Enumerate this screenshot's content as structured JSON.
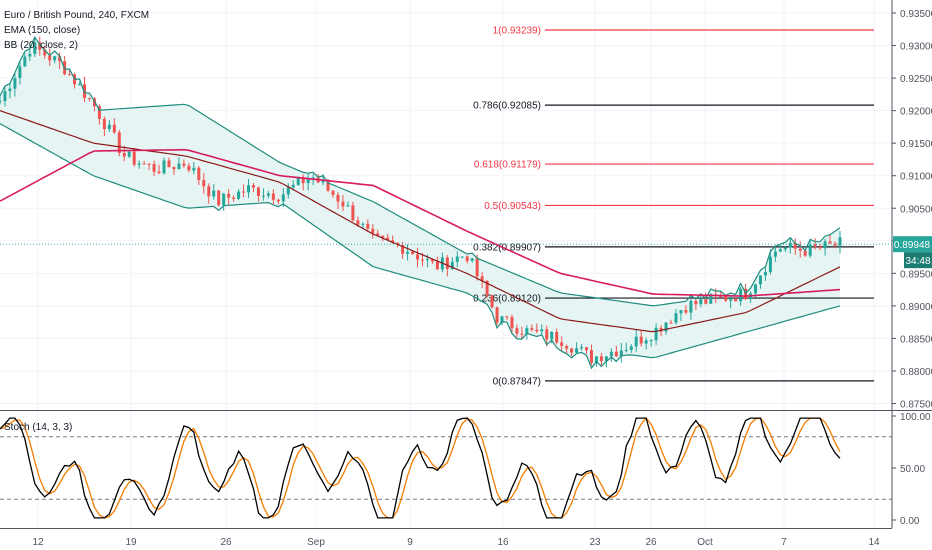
{
  "legend": {
    "symbol": "Euro / British Pound, 240, FXCM",
    "ema": "EMA (150, close)",
    "bb": "BB (20, close, 2)",
    "stoch": "Stoch (14, 3, 3)"
  },
  "price_axis": [
    "0.93500",
    "0.93000",
    "0.92500",
    "0.92000",
    "0.91500",
    "0.91000",
    "0.90500",
    "0.90000",
    "0.89500",
    "0.89000",
    "0.88500",
    "0.88000",
    "0.87500"
  ],
  "stoch_axis": [
    "100.00",
    "50.00",
    "0.00"
  ],
  "time_axis": [
    "12",
    "19",
    "26",
    "Sep",
    "9",
    "16",
    "23",
    "26",
    "Oct",
    "7",
    "14"
  ],
  "current_price": "0.89948",
  "countdown": "34:48",
  "fib_levels": [
    {
      "label": "1(0.93239)",
      "value": 0.93239,
      "color": "#f23645"
    },
    {
      "label": "0.786(0.92085)",
      "value": 0.92085,
      "color": "#131722"
    },
    {
      "label": "0.618(0.91179)",
      "value": 0.91179,
      "color": "#f23645"
    },
    {
      "label": "0.5(0.90543)",
      "value": 0.90543,
      "color": "#f23645"
    },
    {
      "label": "0.382(0.89907)",
      "value": 0.89907,
      "color": "#131722"
    },
    {
      "label": "0.236(0.89120)",
      "value": 0.8912,
      "color": "#131722"
    },
    {
      "label": "0(0.87847)",
      "value": 0.87847,
      "color": "#131722"
    }
  ],
  "colors": {
    "up": "#26a69a",
    "down": "#ef5350",
    "ema150": "#d81b60",
    "bb_basis": "#8b1a1a",
    "bb_band": "#1e8c7e",
    "bb_fill": "#e6f5f3",
    "stoch_k": "#000000",
    "stoch_d": "#f57c00",
    "price_tag": "#26a69a",
    "countdown_tag": "#1b7d72"
  },
  "chart_data": {
    "type": "line",
    "x_unit": "date (4h bars)",
    "x_ticks": [
      "12",
      "19",
      "26",
      "Sep",
      "9",
      "16",
      "23",
      "26",
      "Oct",
      "7",
      "14"
    ],
    "price_range": [
      0.874,
      0.937
    ],
    "series": [
      {
        "kind": "candlestick_close",
        "x": [
          "Aug 9",
          "Aug 12",
          "Aug 14",
          "Aug 16",
          "Aug 19",
          "Aug 21",
          "Aug 23",
          "Aug 26",
          "Aug 28",
          "Aug 30",
          "Sep 2",
          "Sep 3",
          "Sep 5",
          "Sep 9",
          "Sep 11",
          "Sep 13",
          "Sep 16",
          "Sep 18",
          "Sep 20",
          "Sep 23",
          "Sep 25",
          "Sep 27",
          "Sep 30",
          "Oct 2",
          "Oct 4",
          "Oct 7",
          "Oct 8",
          "Oct 10"
        ],
        "y": [
          0.9215,
          0.93,
          0.927,
          0.921,
          0.913,
          0.911,
          0.912,
          0.906,
          0.908,
          0.907,
          0.91,
          0.906,
          0.9,
          0.899,
          0.896,
          0.898,
          0.888,
          0.886,
          0.885,
          0.882,
          0.8835,
          0.886,
          0.89,
          0.891,
          0.892,
          0.899,
          0.8985,
          0.8995
        ]
      },
      {
        "name": "EMA (150, close)",
        "x": [
          "Aug 9",
          "Aug 16",
          "Aug 23",
          "Aug 30",
          "Sep 6",
          "Sep 13",
          "Sep 20",
          "Sep 27",
          "Oct 4",
          "Oct 10"
        ],
        "y": [
          0.9061,
          0.9138,
          0.914,
          0.91,
          0.9085,
          0.9015,
          0.895,
          0.8918,
          0.8915,
          0.8925
        ]
      },
      {
        "name": "BB (20, close, 2)",
        "x": [
          "Aug 9",
          "Aug 16",
          "Aug 23",
          "Aug 30",
          "Sep 6",
          "Sep 13",
          "Sep 20",
          "Sep 27",
          "Oct 4",
          "Oct 10"
        ],
        "upper": [
          0.922,
          0.92,
          0.921,
          0.912,
          0.906,
          0.898,
          0.892,
          0.89,
          0.892,
          0.902
        ],
        "basis": [
          0.92,
          0.915,
          0.913,
          0.909,
          0.901,
          0.895,
          0.888,
          0.886,
          0.889,
          0.896
        ],
        "lower": [
          0.918,
          0.91,
          0.905,
          0.906,
          0.896,
          0.892,
          0.884,
          0.882,
          0.886,
          0.89
        ]
      },
      {
        "name": "Stoch (14, 3, 3)",
        "x": [
          "Aug 9",
          "Aug 14",
          "Aug 19",
          "Aug 24",
          "Aug 29",
          "Sep 3",
          "Sep 8",
          "Sep 13",
          "Sep 18",
          "Sep 23",
          "Sep 28",
          "Oct 3",
          "Oct 8",
          "Oct 10"
        ],
        "y": [
          85,
          30,
          15,
          70,
          20,
          60,
          10,
          90,
          25,
          20,
          80,
          60,
          85,
          90
        ]
      }
    ],
    "stoch_range": [
      0,
      100
    ],
    "stoch_levels": [
      80,
      20
    ],
    "grid": true,
    "legend": "top-left"
  }
}
